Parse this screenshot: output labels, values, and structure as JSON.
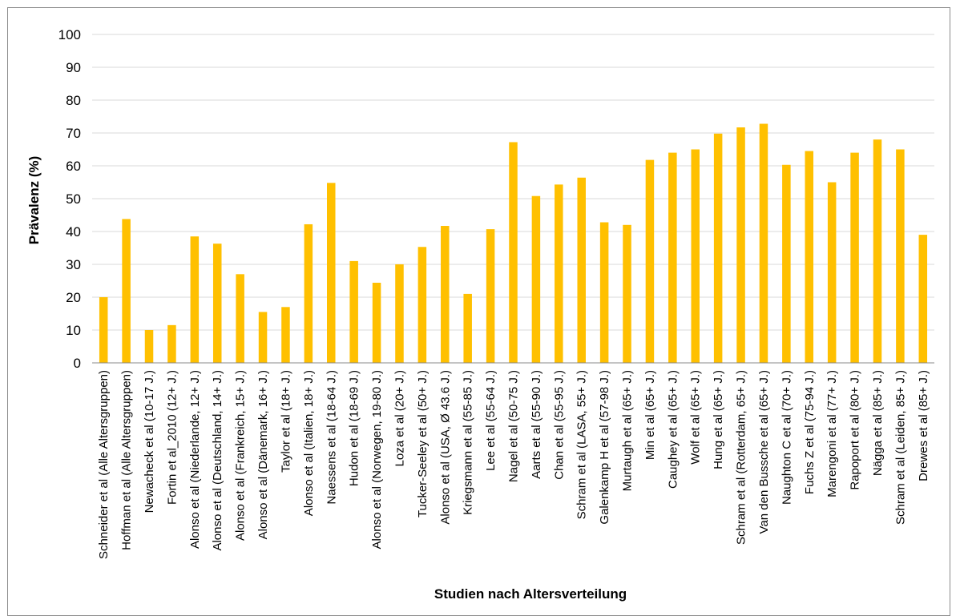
{
  "chart_data": {
    "type": "bar",
    "title": "",
    "xlabel": "Studien nach Altersverteilung",
    "ylabel": "Prävalenz  (%)",
    "ylim": [
      0,
      100
    ],
    "yticks": [
      "0",
      "10",
      "20",
      "30",
      "40",
      "50",
      "60",
      "70",
      "80",
      "90",
      "100"
    ],
    "grid": true,
    "legend": "none",
    "bar_color": "#FFC000",
    "categories": [
      "Schneider et al (Alle Altersgruppen)",
      "Hoffman et al (Alle Altersgruppen)",
      "Newacheck et al (10-17 J.)",
      "Fortin et al_2010 (12+ J.)",
      "Alonso et al (Niederlande, 12+ J.)",
      "Alonso et al (Deutschland, 14+ J.)",
      "Alonso et al (Frankreich, 15+ J.)",
      "Alonso et al (Dänemark, 16+ J.)",
      "Taylor et al (18+ J.)",
      "Alonso et al (Italien, 18+ J.)",
      "Naessens et al (18-64 J.)",
      "Hudon et al (18-69 J.)",
      "Alonso et al (Norwegen, 19-80 J.)",
      "Loza et al (20+ J.)",
      "Tucker-Seeley et al (50+ J.)",
      "Alonso et al (USA, Ø 43.6 J.)",
      "Kriegsmann et al (55-85 J.)",
      "Lee et al (55-64 J.)",
      "Nagel et al (50-75 J.)",
      "Aarts et al (55-90 J.)",
      "Chan et al (55-95 J.)",
      "Schram et al (LASA, 55+ J.)",
      "Galenkamp H et al (57-98 J.)",
      "Murtaugh et al (65+ J.)",
      "Min et al (65+ J.)",
      "Caughey et al (65+ J.)",
      "Wolf et al (65+ J.)",
      "Hung et al (65+ J.)",
      "Schram et al (Rotterdam, 65+ J.)",
      "Van den Bussche et al (65+ J.)",
      "Naughton C et al (70+ J.)",
      "Fuchs Z et al (75-94 J.)",
      "Marengoni et al (77+ J.)",
      "Rapoport et al (80+ J.)",
      "Nägga et al (85+ J.)",
      "Schram et al (Leiden, 85+ J.)",
      "Drewes et al (85+ J.)"
    ],
    "values": [
      20,
      43.8,
      10,
      11.5,
      38.5,
      36.3,
      27,
      15.5,
      17,
      42.2,
      54.8,
      31,
      24.4,
      30,
      35.3,
      41.7,
      21,
      40.7,
      67.2,
      50.8,
      54.3,
      56.4,
      42.8,
      42,
      61.8,
      64,
      65,
      69.8,
      71.7,
      72.8,
      60.3,
      64.5,
      55,
      64,
      68,
      65,
      39
    ]
  }
}
